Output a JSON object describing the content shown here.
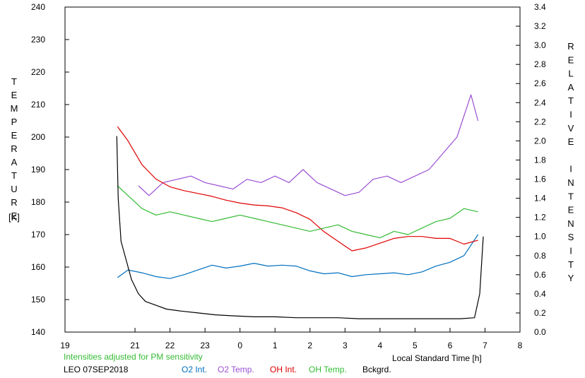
{
  "chart_data": {
    "type": "line",
    "left_axis_label": "TEMPERATURE",
    "left_axis_unit": "[K]",
    "right_axis_label": "RELATIVE INTENSITY",
    "xlabel": "Local Standard Time [h]",
    "x_ticks": [
      "19",
      "21",
      "22",
      "23",
      "0",
      "1",
      "2",
      "3",
      "4",
      "5",
      "6",
      "7",
      "8"
    ],
    "x_tick_hours": [
      19,
      21,
      22,
      23,
      24,
      25,
      26,
      27,
      28,
      29,
      30,
      31,
      32
    ],
    "xlim": [
      19,
      32
    ],
    "ylim_left": [
      140,
      240
    ],
    "left_ticks": [
      140,
      150,
      160,
      170,
      180,
      190,
      200,
      210,
      220,
      230,
      240
    ],
    "ylim_right": [
      0.0,
      3.4
    ],
    "right_ticks": [
      "0.0",
      "0.2",
      "0.4",
      "0.6",
      "0.8",
      "1.0",
      "1.2",
      "1.4",
      "1.6",
      "1.8",
      "2.0",
      "2.2",
      "2.4",
      "2.6",
      "2.8",
      "3.0",
      "3.2",
      "3.4"
    ],
    "note": "Intensities adjusted for PM sensitivity",
    "station": "LEO 07SEP2018",
    "series": [
      {
        "name": "O2 Int.",
        "axis": "right",
        "color": "#0070c0",
        "x": [
          20.5,
          20.8,
          21.2,
          21.6,
          22.0,
          22.4,
          22.8,
          23.2,
          23.6,
          24.0,
          24.4,
          24.8,
          25.2,
          25.6,
          26.0,
          26.4,
          26.8,
          27.2,
          27.6,
          28.0,
          28.4,
          28.8,
          29.2,
          29.6,
          30.0,
          30.4,
          30.8
        ],
        "values": [
          0.57,
          0.65,
          0.62,
          0.58,
          0.56,
          0.6,
          0.65,
          0.7,
          0.67,
          0.69,
          0.72,
          0.69,
          0.7,
          0.69,
          0.64,
          0.61,
          0.62,
          0.58,
          0.6,
          0.61,
          0.62,
          0.6,
          0.63,
          0.69,
          0.73,
          0.8,
          1.02
        ]
      },
      {
        "name": "O2 Temp.",
        "axis": "left",
        "color": "#9b4fd4",
        "x": [
          21.1,
          21.4,
          21.8,
          22.2,
          22.6,
          23.0,
          23.4,
          23.8,
          24.2,
          24.6,
          25.0,
          25.4,
          25.8,
          26.2,
          26.6,
          27.0,
          27.4,
          27.8,
          28.2,
          28.6,
          29.0,
          29.4,
          29.8,
          30.2,
          30.6,
          30.8
        ],
        "values": [
          185,
          182,
          186,
          187,
          188,
          186,
          185,
          184,
          187,
          186,
          188,
          186,
          190,
          186,
          184,
          182,
          183,
          187,
          188,
          186,
          188,
          190,
          195,
          200,
          213,
          205
        ]
      },
      {
        "name": "OH Int.",
        "axis": "right",
        "color": "#e00000",
        "x": [
          20.5,
          20.8,
          21.2,
          21.6,
          22.0,
          22.4,
          22.8,
          23.2,
          23.6,
          24.0,
          24.4,
          24.8,
          25.2,
          25.6,
          26.0,
          26.4,
          26.8,
          27.2,
          27.6,
          28.0,
          28.4,
          28.8,
          29.2,
          29.6,
          30.0,
          30.4,
          30.8
        ],
        "values": [
          2.15,
          2.0,
          1.75,
          1.6,
          1.52,
          1.48,
          1.45,
          1.42,
          1.38,
          1.35,
          1.33,
          1.32,
          1.3,
          1.25,
          1.18,
          1.05,
          0.95,
          0.85,
          0.88,
          0.93,
          0.98,
          1.0,
          1.0,
          0.98,
          0.98,
          0.92,
          0.96
        ]
      },
      {
        "name": "OH Temp.",
        "axis": "left",
        "color": "#33bb33",
        "x": [
          20.5,
          20.8,
          21.2,
          21.6,
          22.0,
          22.4,
          22.8,
          23.2,
          23.6,
          24.0,
          24.4,
          24.8,
          25.2,
          25.6,
          26.0,
          26.4,
          26.8,
          27.2,
          27.6,
          28.0,
          28.4,
          28.8,
          29.2,
          29.6,
          30.0,
          30.4,
          30.8
        ],
        "values": [
          185,
          182,
          178,
          176,
          177,
          176,
          175,
          174,
          175,
          176,
          175,
          174,
          173,
          172,
          171,
          172,
          173,
          171,
          170,
          169,
          171,
          170,
          172,
          174,
          175,
          178,
          177
        ]
      },
      {
        "name": "Bckgrd.",
        "axis": "right",
        "color": "#000000",
        "x": [
          20.48,
          20.52,
          20.6,
          20.75,
          20.9,
          21.1,
          21.3,
          21.6,
          21.9,
          22.3,
          22.8,
          23.3,
          23.8,
          24.4,
          25.0,
          25.6,
          26.2,
          26.8,
          27.4,
          28.0,
          28.6,
          29.2,
          29.8,
          30.3,
          30.7,
          30.85,
          30.95
        ],
        "values": [
          2.05,
          1.4,
          0.95,
          0.75,
          0.55,
          0.4,
          0.32,
          0.28,
          0.24,
          0.22,
          0.2,
          0.18,
          0.17,
          0.16,
          0.16,
          0.15,
          0.15,
          0.15,
          0.14,
          0.14,
          0.14,
          0.14,
          0.14,
          0.14,
          0.15,
          0.4,
          1.0
        ]
      }
    ]
  }
}
